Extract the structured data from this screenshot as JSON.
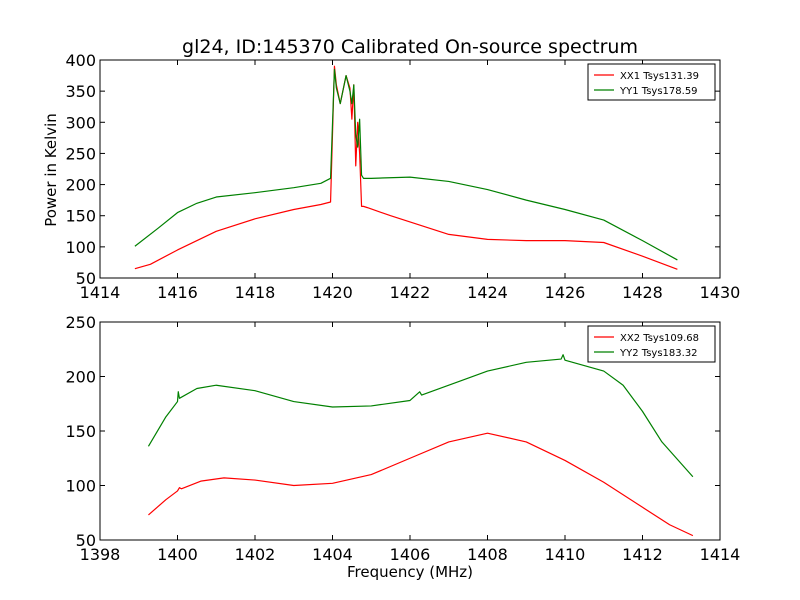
{
  "chart_data": [
    {
      "type": "line",
      "title": "gl24, ID:145370 Calibrated On-source spectrum",
      "xlabel": "",
      "ylabel": "Power in Kelvin",
      "xlim": [
        1414,
        1430
      ],
      "ylim": [
        50,
        400
      ],
      "xticks": [
        1414,
        1416,
        1418,
        1420,
        1422,
        1424,
        1426,
        1428,
        1430
      ],
      "yticks": [
        50,
        100,
        150,
        200,
        250,
        300,
        350,
        400
      ],
      "legend": "top-right",
      "series": [
        {
          "name": "XX1 Tsys131.39",
          "color": "#ff0000",
          "x": [
            1414.9,
            1415.3,
            1416.0,
            1417.0,
            1418.0,
            1419.0,
            1419.7,
            1419.95,
            1420.05,
            1420.1,
            1420.2,
            1420.35,
            1420.45,
            1420.5,
            1420.55,
            1420.6,
            1420.65,
            1420.7,
            1420.75,
            1420.8,
            1420.9,
            1421.5,
            1422.0,
            1423.0,
            1424.0,
            1425.0,
            1426.0,
            1427.0,
            1428.0,
            1428.9
          ],
          "y": [
            65,
            72,
            95,
            125,
            145,
            160,
            168,
            172,
            390,
            360,
            330,
            375,
            355,
            305,
            360,
            230,
            300,
            250,
            165,
            165,
            163,
            150,
            140,
            120,
            112,
            110,
            110,
            107,
            85,
            64
          ]
        },
        {
          "name": "YY1 Tsys178.59",
          "color": "#008000",
          "x": [
            1414.9,
            1415.5,
            1416.0,
            1416.5,
            1417.0,
            1418.0,
            1419.0,
            1419.7,
            1419.95,
            1420.05,
            1420.1,
            1420.2,
            1420.35,
            1420.45,
            1420.5,
            1420.55,
            1420.6,
            1420.65,
            1420.7,
            1420.75,
            1420.8,
            1421.0,
            1422.0,
            1423.0,
            1424.0,
            1425.0,
            1426.0,
            1427.0,
            1428.0,
            1428.9
          ],
          "y": [
            101,
            130,
            155,
            170,
            180,
            187,
            195,
            202,
            210,
            385,
            355,
            330,
            375,
            350,
            330,
            360,
            280,
            260,
            305,
            215,
            210,
            210,
            212,
            205,
            192,
            175,
            160,
            143,
            110,
            79
          ]
        }
      ]
    },
    {
      "type": "line",
      "title": "",
      "xlabel": "Frequency (MHz)",
      "ylabel": "",
      "xlim": [
        1398,
        1414
      ],
      "ylim": [
        50,
        250
      ],
      "xticks": [
        1398,
        1400,
        1402,
        1404,
        1406,
        1408,
        1410,
        1412,
        1414
      ],
      "yticks": [
        50,
        100,
        150,
        200,
        250
      ],
      "legend": "top-right",
      "series": [
        {
          "name": "XX2 Tsys109.68",
          "color": "#ff0000",
          "x": [
            1399.25,
            1399.7,
            1400.0,
            1400.05,
            1400.1,
            1400.6,
            1401.2,
            1402.0,
            1403.0,
            1404.0,
            1405.0,
            1406.0,
            1407.0,
            1408.0,
            1409.0,
            1410.0,
            1411.0,
            1412.0,
            1412.7,
            1413.3
          ],
          "y": [
            73,
            87,
            95,
            98,
            97,
            104,
            107,
            105,
            100,
            102,
            110,
            125,
            140,
            148,
            140,
            123,
            103,
            80,
            64,
            54
          ]
        },
        {
          "name": "YY2 Tsys183.32",
          "color": "#008000",
          "x": [
            1399.25,
            1399.7,
            1400.0,
            1400.02,
            1400.05,
            1400.5,
            1401.0,
            1402.0,
            1403.0,
            1404.0,
            1405.0,
            1406.0,
            1406.25,
            1406.3,
            1407.0,
            1408.0,
            1409.0,
            1409.9,
            1409.95,
            1410.0,
            1411.0,
            1411.5,
            1412.0,
            1412.5,
            1413.3
          ],
          "y": [
            136,
            163,
            177,
            186,
            180,
            189,
            192,
            187,
            177,
            172,
            173,
            178,
            186,
            183,
            192,
            205,
            213,
            216,
            220,
            215,
            205,
            192,
            168,
            140,
            108
          ]
        }
      ]
    }
  ]
}
